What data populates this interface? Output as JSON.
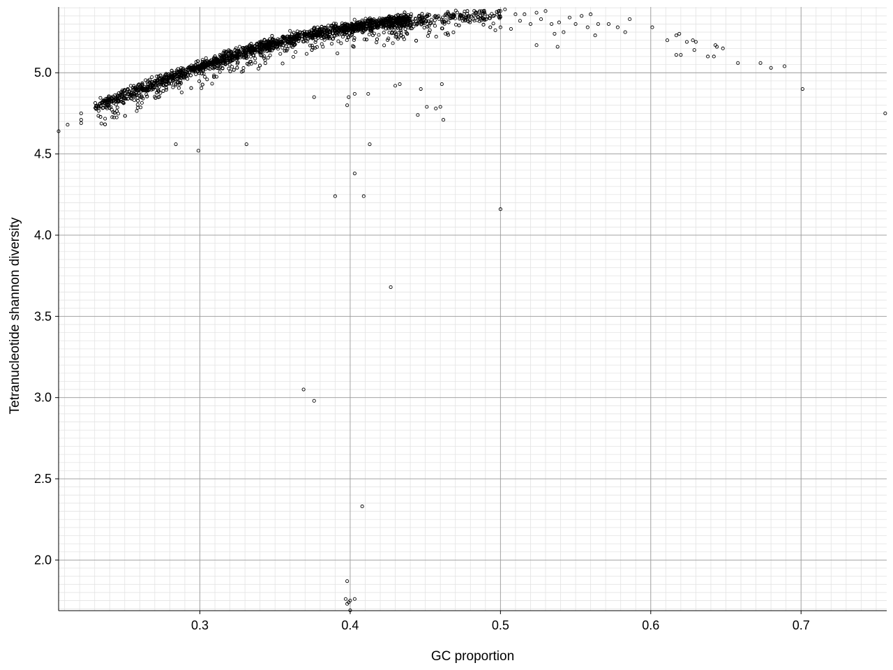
{
  "chart_data": {
    "type": "scatter",
    "title": "",
    "xlabel": "GC proportion",
    "ylabel": "Tetranucleotide shannon diversity",
    "xlim": [
      0.206,
      0.757
    ],
    "ylim": [
      1.688,
      5.405
    ],
    "x_major_ticks": [
      0.3,
      0.4,
      0.5,
      0.6,
      0.7
    ],
    "x_tick_labels": [
      "0.3",
      "0.4",
      "0.5",
      "0.6",
      "0.7"
    ],
    "y_major_ticks": [
      2.0,
      2.5,
      3.0,
      3.5,
      4.0,
      4.5,
      5.0
    ],
    "y_tick_labels": [
      "2.0",
      "2.5",
      "3.0",
      "3.5",
      "4.0",
      "4.5",
      "5.0"
    ],
    "x_minor_step": 0.01,
    "y_minor_step": 0.05,
    "grid": true,
    "legend": "none",
    "marker": "open circle",
    "marker_color": "#000000",
    "main_cluster": {
      "description": "dense band of several thousand points following a concave trend",
      "ridge": [
        [
          0.23,
          4.79
        ],
        [
          0.26,
          4.9
        ],
        [
          0.3,
          5.04
        ],
        [
          0.34,
          5.16
        ],
        [
          0.38,
          5.25
        ],
        [
          0.42,
          5.31
        ],
        [
          0.46,
          5.34
        ],
        [
          0.5,
          5.36
        ]
      ],
      "x_range": [
        0.23,
        0.5
      ]
    },
    "points": [
      {
        "x": 0.206,
        "y": 4.64
      },
      {
        "x": 0.212,
        "y": 4.68
      },
      {
        "x": 0.221,
        "y": 4.75
      },
      {
        "x": 0.221,
        "y": 4.71
      },
      {
        "x": 0.221,
        "y": 4.69
      },
      {
        "x": 0.284,
        "y": 4.56
      },
      {
        "x": 0.299,
        "y": 4.52
      },
      {
        "x": 0.331,
        "y": 4.56
      },
      {
        "x": 0.376,
        "y": 4.85
      },
      {
        "x": 0.39,
        "y": 4.24
      },
      {
        "x": 0.398,
        "y": 4.8
      },
      {
        "x": 0.399,
        "y": 4.85
      },
      {
        "x": 0.403,
        "y": 4.87
      },
      {
        "x": 0.403,
        "y": 4.38
      },
      {
        "x": 0.409,
        "y": 4.24
      },
      {
        "x": 0.412,
        "y": 4.87
      },
      {
        "x": 0.413,
        "y": 4.56
      },
      {
        "x": 0.427,
        "y": 3.68
      },
      {
        "x": 0.43,
        "y": 4.92
      },
      {
        "x": 0.433,
        "y": 4.93
      },
      {
        "x": 0.445,
        "y": 4.74
      },
      {
        "x": 0.447,
        "y": 4.9
      },
      {
        "x": 0.451,
        "y": 4.79
      },
      {
        "x": 0.457,
        "y": 4.78
      },
      {
        "x": 0.46,
        "y": 4.79
      },
      {
        "x": 0.461,
        "y": 4.93
      },
      {
        "x": 0.462,
        "y": 4.71
      },
      {
        "x": 0.5,
        "y": 4.16
      },
      {
        "x": 0.369,
        "y": 3.05
      },
      {
        "x": 0.376,
        "y": 2.98
      },
      {
        "x": 0.408,
        "y": 2.33
      },
      {
        "x": 0.398,
        "y": 1.87
      },
      {
        "x": 0.397,
        "y": 1.76
      },
      {
        "x": 0.399,
        "y": 1.74
      },
      {
        "x": 0.4,
        "y": 1.75
      },
      {
        "x": 0.403,
        "y": 1.76
      },
      {
        "x": 0.398,
        "y": 1.73
      },
      {
        "x": 0.4,
        "y": 1.69
      },
      {
        "x": 0.5,
        "y": 5.38
      },
      {
        "x": 0.503,
        "y": 5.39
      },
      {
        "x": 0.51,
        "y": 5.36
      },
      {
        "x": 0.513,
        "y": 5.32
      },
      {
        "x": 0.516,
        "y": 5.36
      },
      {
        "x": 0.52,
        "y": 5.3
      },
      {
        "x": 0.524,
        "y": 5.37
      },
      {
        "x": 0.527,
        "y": 5.33
      },
      {
        "x": 0.53,
        "y": 5.38
      },
      {
        "x": 0.534,
        "y": 5.3
      },
      {
        "x": 0.536,
        "y": 5.24
      },
      {
        "x": 0.539,
        "y": 5.31
      },
      {
        "x": 0.542,
        "y": 5.25
      },
      {
        "x": 0.546,
        "y": 5.34
      },
      {
        "x": 0.55,
        "y": 5.3
      },
      {
        "x": 0.554,
        "y": 5.35
      },
      {
        "x": 0.558,
        "y": 5.28
      },
      {
        "x": 0.56,
        "y": 5.36
      },
      {
        "x": 0.563,
        "y": 5.23
      },
      {
        "x": 0.565,
        "y": 5.3
      },
      {
        "x": 0.524,
        "y": 5.17
      },
      {
        "x": 0.538,
        "y": 5.16
      },
      {
        "x": 0.5,
        "y": 5.28
      },
      {
        "x": 0.507,
        "y": 5.27
      },
      {
        "x": 0.572,
        "y": 5.3
      },
      {
        "x": 0.578,
        "y": 5.28
      },
      {
        "x": 0.583,
        "y": 5.25
      },
      {
        "x": 0.586,
        "y": 5.33
      },
      {
        "x": 0.601,
        "y": 5.28
      },
      {
        "x": 0.611,
        "y": 5.2
      },
      {
        "x": 0.617,
        "y": 5.23
      },
      {
        "x": 0.619,
        "y": 5.24
      },
      {
        "x": 0.617,
        "y": 5.11
      },
      {
        "x": 0.62,
        "y": 5.11
      },
      {
        "x": 0.624,
        "y": 5.19
      },
      {
        "x": 0.628,
        "y": 5.2
      },
      {
        "x": 0.629,
        "y": 5.14
      },
      {
        "x": 0.63,
        "y": 5.19
      },
      {
        "x": 0.638,
        "y": 5.1
      },
      {
        "x": 0.642,
        "y": 5.1
      },
      {
        "x": 0.643,
        "y": 5.17
      },
      {
        "x": 0.644,
        "y": 5.16
      },
      {
        "x": 0.648,
        "y": 5.15
      },
      {
        "x": 0.658,
        "y": 5.06
      },
      {
        "x": 0.673,
        "y": 5.06
      },
      {
        "x": 0.68,
        "y": 5.03
      },
      {
        "x": 0.689,
        "y": 5.04
      },
      {
        "x": 0.701,
        "y": 4.9
      },
      {
        "x": 0.756,
        "y": 4.75
      }
    ]
  }
}
